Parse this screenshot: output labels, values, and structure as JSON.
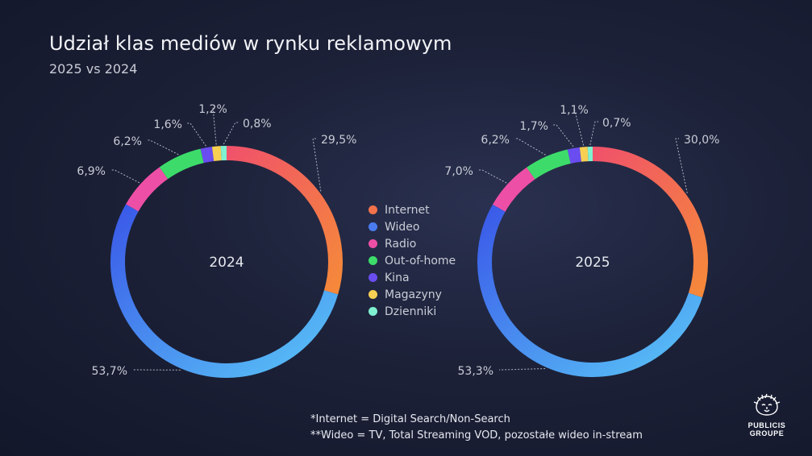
{
  "title": "Udział klas mediów w rynku reklamowym",
  "subtitle": "2025 vs 2024",
  "chart_data": [
    {
      "type": "pie",
      "center_label": "2024",
      "categories": [
        "Internet",
        "Wideo",
        "Radio",
        "Out-of-home",
        "Kina",
        "Magazyny",
        "Dzienniki"
      ],
      "values": [
        29.5,
        53.7,
        6.9,
        6.2,
        1.6,
        1.2,
        0.8
      ],
      "labels": [
        "29,5%",
        "53,7%",
        "6,9%",
        "6,2%",
        "1,6%",
        "1,2%",
        "0,8%"
      ]
    },
    {
      "type": "pie",
      "center_label": "2025",
      "categories": [
        "Internet",
        "Wideo",
        "Radio",
        "Out-of-home",
        "Kina",
        "Magazyny",
        "Dzienniki"
      ],
      "values": [
        30.0,
        53.3,
        7.0,
        6.2,
        1.7,
        1.1,
        0.7
      ],
      "labels": [
        "30,0%",
        "53,3%",
        "7,0%",
        "6,2%",
        "1,7%",
        "1,1%",
        "0,7%"
      ]
    }
  ],
  "legend": [
    {
      "label": "Internet",
      "color": "#f2724b"
    },
    {
      "label": "Wideo",
      "color": "#4a7cf0"
    },
    {
      "label": "Radio",
      "color": "#ee4fa6"
    },
    {
      "label": "Out-of-home",
      "color": "#3ddc6a"
    },
    {
      "label": "Kina",
      "color": "#6a4df0"
    },
    {
      "label": "Magazyny",
      "color": "#f7cf52"
    },
    {
      "label": "Dzienniki",
      "color": "#7ff0d0"
    }
  ],
  "footnotes": [
    "*Internet = Digital Search/Non-Search",
    "**Wideo = TV, Total Streaming VOD, pozostałe wideo in-stream"
  ],
  "logo": {
    "line1": "PUBLICIS",
    "line2": "GROUPE",
    "icon": "lion-head-icon"
  }
}
